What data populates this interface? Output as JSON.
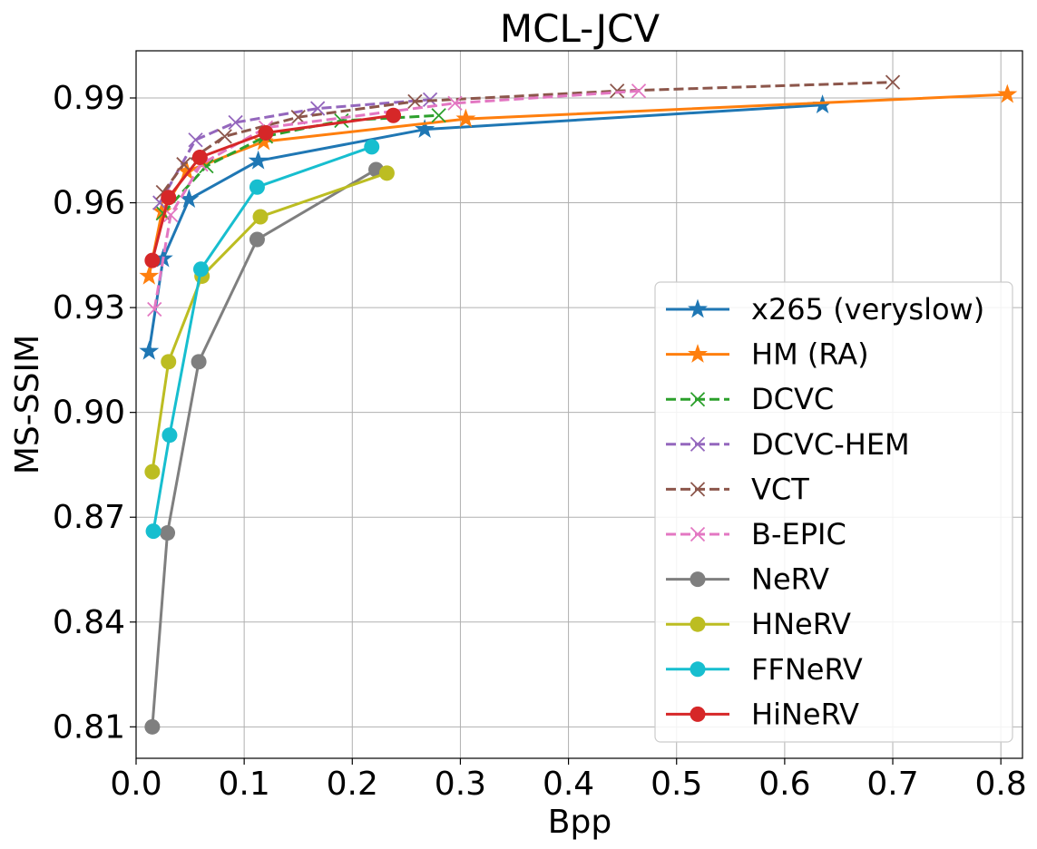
{
  "chart_data": {
    "type": "line",
    "title": "MCL-JCV",
    "xlabel": "Bpp",
    "ylabel": "MS-SSIM",
    "xlim": [
      0.0,
      0.82
    ],
    "ylim": [
      0.801,
      1.0035
    ],
    "xticks": [
      0.0,
      0.1,
      0.2,
      0.3,
      0.4,
      0.5,
      0.6,
      0.7,
      0.8
    ],
    "xtick_labels": [
      "0.0",
      "0.1",
      "0.2",
      "0.3",
      "0.4",
      "0.5",
      "0.6",
      "0.7",
      "0.8"
    ],
    "yticks": [
      0.81,
      0.84,
      0.87,
      0.9,
      0.93,
      0.96,
      0.99
    ],
    "ytick_labels": [
      "0.81",
      "0.84",
      "0.87",
      "0.90",
      "0.93",
      "0.96",
      "0.99"
    ],
    "grid": true,
    "legend_position": "lower-right",
    "series": [
      {
        "name": "x265 (veryslow)",
        "color": "#1f77b4",
        "dash": "solid",
        "marker": "star",
        "x": [
          0.012,
          0.025,
          0.049,
          0.113,
          0.267,
          0.635
        ],
        "y": [
          0.9175,
          0.944,
          0.961,
          0.972,
          0.981,
          0.988
        ]
      },
      {
        "name": "HM (RA)",
        "color": "#ff7f0e",
        "dash": "solid",
        "marker": "star",
        "x": [
          0.012,
          0.024,
          0.047,
          0.118,
          0.305,
          0.806
        ],
        "y": [
          0.939,
          0.9575,
          0.969,
          0.9775,
          0.984,
          0.991
        ]
      },
      {
        "name": "DCVC",
        "color": "#2ca02c",
        "dash": "dashed",
        "marker": "x",
        "x": [
          0.025,
          0.065,
          0.12,
          0.19,
          0.28
        ],
        "y": [
          0.957,
          0.9705,
          0.979,
          0.9835,
          0.985
        ]
      },
      {
        "name": "DCVC-HEM",
        "color": "#9467bd",
        "dash": "dashed",
        "marker": "x",
        "x": [
          0.022,
          0.055,
          0.092,
          0.168,
          0.272
        ],
        "y": [
          0.96,
          0.978,
          0.983,
          0.987,
          0.9895
        ]
      },
      {
        "name": "VCT",
        "color": "#8c564b",
        "dash": "dashed",
        "marker": "x",
        "x": [
          0.025,
          0.044,
          0.082,
          0.15,
          0.258,
          0.445,
          0.7
        ],
        "y": [
          0.963,
          0.971,
          0.979,
          0.9845,
          0.989,
          0.992,
          0.9945
        ]
      },
      {
        "name": "B-EPIC",
        "color": "#e377c2",
        "dash": "dashed",
        "marker": "x",
        "x": [
          0.017,
          0.032,
          0.06,
          0.12,
          0.295,
          0.465
        ],
        "y": [
          0.9295,
          0.9565,
          0.971,
          0.9815,
          0.9885,
          0.992
        ]
      },
      {
        "name": "NeRV",
        "color": "#7f7f7f",
        "dash": "solid",
        "marker": "circle",
        "x": [
          0.015,
          0.029,
          0.058,
          0.112,
          0.222
        ],
        "y": [
          0.81,
          0.8655,
          0.9145,
          0.9495,
          0.9695
        ]
      },
      {
        "name": "HNeRV",
        "color": "#bcbd22",
        "dash": "solid",
        "marker": "circle",
        "x": [
          0.015,
          0.03,
          0.061,
          0.115,
          0.232
        ],
        "y": [
          0.883,
          0.9145,
          0.939,
          0.956,
          0.9685
        ]
      },
      {
        "name": "FFNeRV",
        "color": "#17becf",
        "dash": "solid",
        "marker": "circle",
        "x": [
          0.016,
          0.031,
          0.06,
          0.112,
          0.218
        ],
        "y": [
          0.866,
          0.8935,
          0.941,
          0.9645,
          0.976
        ]
      },
      {
        "name": "HiNeRV",
        "color": "#d62728",
        "dash": "solid",
        "marker": "circle",
        "x": [
          0.015,
          0.03,
          0.059,
          0.12,
          0.238
        ],
        "y": [
          0.9435,
          0.9615,
          0.973,
          0.98,
          0.985
        ]
      }
    ]
  }
}
